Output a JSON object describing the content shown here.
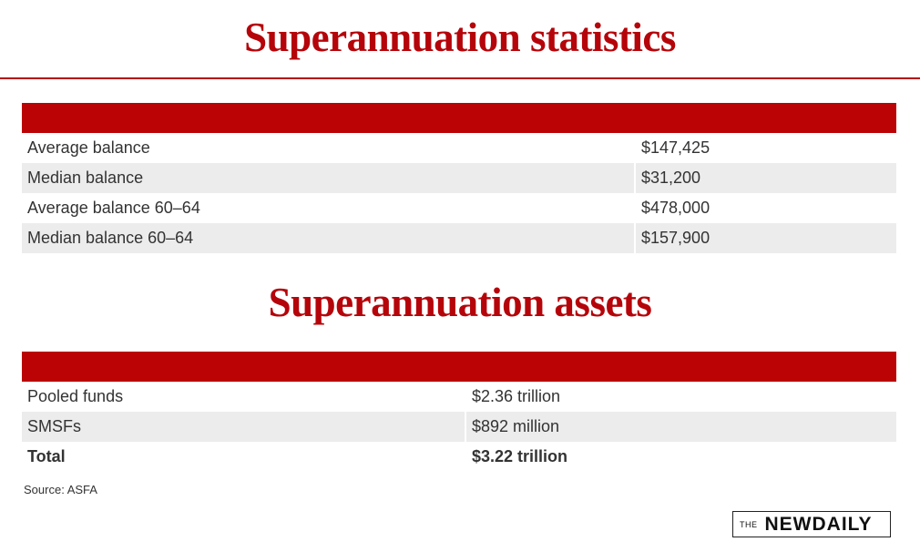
{
  "sections": [
    {
      "title": "Superannuation statistics",
      "rows": [
        [
          "Average balance",
          "$147,425"
        ],
        [
          "Median balance",
          "$31,200"
        ],
        [
          "Average balance 60–64",
          "$478,000"
        ],
        [
          "Median balance 60–64",
          "$157,900"
        ]
      ]
    },
    {
      "title": "Superannuation assets",
      "rows": [
        [
          "Pooled funds",
          "$2.36 trillion"
        ],
        [
          "SMSFs",
          "$892 million"
        ],
        [
          "Total",
          "$3.22 trillion"
        ]
      ]
    }
  ],
  "source": "Source: ASFA",
  "logo": {
    "prefix": "THE",
    "name": "NEWDAILY"
  }
}
